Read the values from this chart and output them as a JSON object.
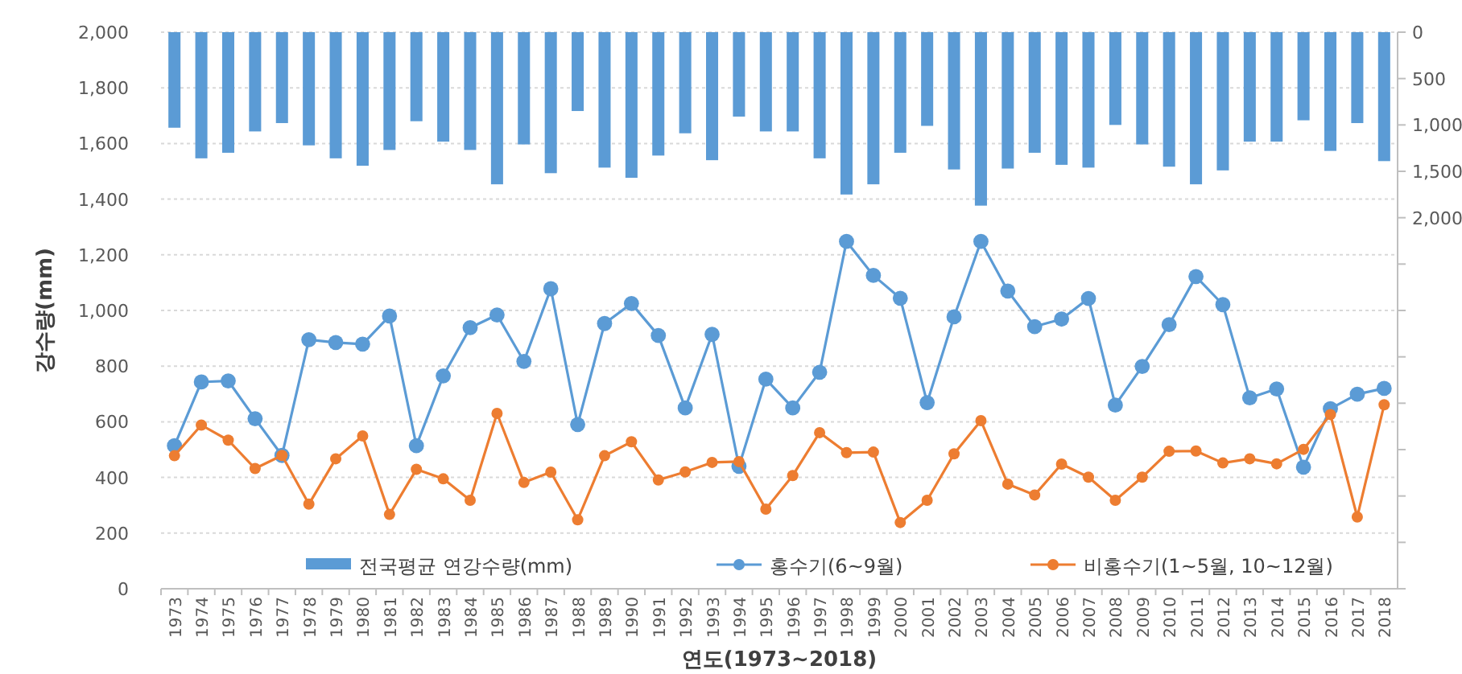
{
  "chart_data": {
    "type": "bar",
    "xlabel": "연도(1973~2018)",
    "ylabel": "강수량(mm)",
    "categories": [
      "1973",
      "1974",
      "1975",
      "1976",
      "1977",
      "1978",
      "1979",
      "1980",
      "1981",
      "1982",
      "1983",
      "1984",
      "1985",
      "1986",
      "1987",
      "1988",
      "1989",
      "1990",
      "1991",
      "1992",
      "1993",
      "1994",
      "1995",
      "1996",
      "1997",
      "1998",
      "1999",
      "2000",
      "2001",
      "2002",
      "2003",
      "2004",
      "2005",
      "2006",
      "2007",
      "2008",
      "2009",
      "2010",
      "2011",
      "2012",
      "2013",
      "2014",
      "2015",
      "2016",
      "2017",
      "2018"
    ],
    "series": [
      {
        "name": "전국평균 연강수량(mm)",
        "axis": "y2",
        "color": "#5b9bd5",
        "values": [
          1030,
          1360,
          1300,
          1070,
          980,
          1220,
          1360,
          1440,
          1270,
          960,
          1180,
          1270,
          1640,
          1210,
          1520,
          850,
          1460,
          1570,
          1330,
          1090,
          1380,
          910,
          1070,
          1070,
          1360,
          1750,
          1640,
          1300,
          1010,
          1480,
          1870,
          1470,
          1300,
          1430,
          1460,
          1000,
          1210,
          1450,
          1640,
          1490,
          1180,
          1180,
          950,
          1280,
          980,
          1390
        ]
      },
      {
        "name": "홍수기(6~9월)",
        "type": "line",
        "color": "#5b9bd5",
        "values": [
          514,
          743,
          747,
          611,
          479,
          895,
          885,
          879,
          980,
          514,
          765,
          938,
          984,
          817,
          1078,
          590,
          953,
          1025,
          910,
          650,
          914,
          440,
          753,
          650,
          778,
          1248,
          1126,
          1044,
          669,
          977,
          1248,
          1070,
          942,
          969,
          1043,
          660,
          799,
          949,
          1122,
          1021,
          686,
          718,
          437,
          647,
          699,
          720
        ]
      },
      {
        "name": "비홍수기(1~5월, 10~12월)",
        "type": "line",
        "color": "#ed7d31",
        "values": [
          478,
          588,
          534,
          432,
          479,
          304,
          467,
          549,
          267,
          429,
          395,
          318,
          630,
          382,
          419,
          248,
          478,
          528,
          391,
          420,
          454,
          457,
          286,
          407,
          561,
          489,
          491,
          238,
          318,
          485,
          604,
          376,
          337,
          448,
          401,
          318,
          401,
          494,
          495,
          452,
          467,
          449,
          501,
          626,
          258,
          661
        ]
      }
    ],
    "ylim": [
      0,
      2000
    ],
    "yticks": [
      {
        "value": 0,
        "label": "0"
      },
      {
        "value": 200,
        "label": "200"
      },
      {
        "value": 400,
        "label": "400"
      },
      {
        "value": 600,
        "label": "600"
      },
      {
        "value": 800,
        "label": "800"
      },
      {
        "value": 1000,
        "label": "1,000"
      },
      {
        "value": 1200,
        "label": "1,200"
      },
      {
        "value": 1400,
        "label": "1,400"
      },
      {
        "value": 1600,
        "label": "1,600"
      },
      {
        "value": 1800,
        "label": "1,800"
      },
      {
        "value": 2000,
        "label": "2,000"
      }
    ],
    "y2lim": [
      6000,
      0
    ],
    "y2ticks": [
      {
        "value": 0,
        "label": "0"
      },
      {
        "value": 500,
        "label": "500"
      },
      {
        "value": 1000,
        "label": "1,000"
      },
      {
        "value": 1500,
        "label": "1,500"
      },
      {
        "value": 2000,
        "label": "2,000"
      },
      {
        "value": 2500,
        "label": null
      },
      {
        "value": 3000,
        "label": null
      },
      {
        "value": 3500,
        "label": null
      },
      {
        "value": 4000,
        "label": null
      },
      {
        "value": 4500,
        "label": null
      },
      {
        "value": 5000,
        "label": null
      },
      {
        "value": 5500,
        "label": null
      },
      {
        "value": 6000,
        "label": null
      }
    ],
    "grid": "y",
    "legend": "bottom",
    "marker": "circle"
  }
}
